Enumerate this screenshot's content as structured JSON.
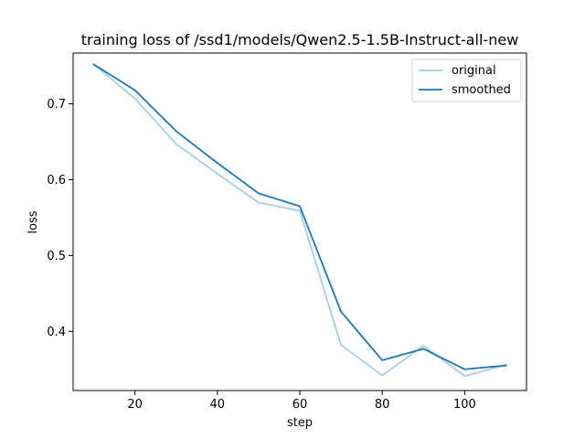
{
  "chart_data": {
    "type": "line",
    "title": "training loss of /ssd1/models/Qwen2.5-1.5B-Instruct-all-new",
    "xlabel": "step",
    "ylabel": "loss",
    "xlim": [
      5,
      115
    ],
    "ylim": [
      0.322,
      0.767
    ],
    "xticks": [
      20,
      40,
      60,
      80,
      100
    ],
    "yticks": [
      0.4,
      0.5,
      0.6,
      0.7
    ],
    "xtick_labels": [
      "20",
      "40",
      "60",
      "80",
      "100"
    ],
    "ytick_labels": [
      "0.4",
      "0.5",
      "0.6",
      "0.7"
    ],
    "grid": false,
    "legend_position": "top-right",
    "x": [
      10,
      20,
      30,
      40,
      50,
      60,
      70,
      80,
      90,
      100,
      110
    ],
    "series": [
      {
        "name": "original",
        "color": "#a6cee3",
        "values": [
          0.752,
          0.707,
          0.647,
          0.608,
          0.57,
          0.559,
          0.382,
          0.342,
          0.381,
          0.341,
          0.356
        ]
      },
      {
        "name": "smoothed",
        "color": "#1f77b4",
        "values": [
          0.752,
          0.718,
          0.664,
          0.622,
          0.582,
          0.565,
          0.426,
          0.362,
          0.377,
          0.35,
          0.355
        ]
      }
    ]
  }
}
